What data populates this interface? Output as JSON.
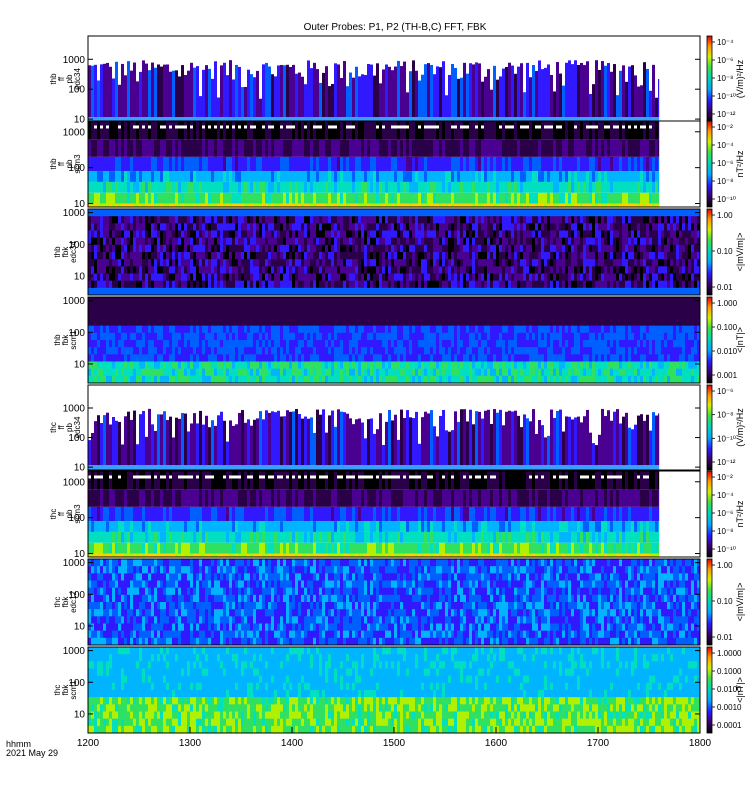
{
  "title": "Outer Probes: P1, P2 (TH-B,C) FFT, FBK",
  "footer": {
    "time_label": "hhmm",
    "date_label": "2021 May 29"
  },
  "colors": {
    "background": "#ffffff",
    "axis": "#000000"
  },
  "chart_data": {
    "type": "heatmap",
    "x_ticks": [
      "1200",
      "1300",
      "1400",
      "1500",
      "1600",
      "1700",
      "1800"
    ],
    "x_range": [
      1200,
      1800
    ],
    "panels": [
      {
        "label_lines": [
          "thb",
          "ff",
          "pb",
          "edc34"
        ],
        "y_ticks": [
          "10",
          "100",
          "1000"
        ],
        "y_scale": "log",
        "y_range": [
          8,
          6000
        ],
        "data_end": 1760,
        "style": "fft_e",
        "colorbar_label": "(V/m)²/Hz",
        "colorbar_ticks": [
          "10⁻⁴",
          "10⁻⁶",
          "10⁻⁸",
          "10⁻¹⁰",
          "10⁻¹²"
        ]
      },
      {
        "label_lines": [
          "thb",
          "ff",
          "pb",
          "scm3"
        ],
        "y_ticks": [
          "10",
          "100",
          "1000"
        ],
        "y_scale": "log",
        "y_range": [
          8,
          2000
        ],
        "data_end": 1760,
        "style": "fft_b",
        "colorbar_label": "nT²/Hz",
        "colorbar_ticks": [
          "10⁻²",
          "10⁻⁴",
          "10⁻⁶",
          "10⁻⁸",
          "10⁻¹⁰"
        ]
      },
      {
        "label_lines": [
          "thb",
          "fbk",
          "edc34"
        ],
        "y_ticks": [
          "10",
          "100",
          "1000"
        ],
        "y_scale": "log",
        "y_range": [
          2.5,
          1300
        ],
        "data_end": 1800,
        "style": "fbk_e",
        "colorbar_label": "<|mV/m|>",
        "colorbar_ticks": [
          "1.00",
          "0.10",
          "0.01"
        ]
      },
      {
        "label_lines": [
          "thb",
          "fbk",
          "scm1"
        ],
        "y_ticks": [
          "10",
          "100",
          "1000"
        ],
        "y_scale": "log",
        "y_range": [
          2.5,
          1300
        ],
        "data_end": 1800,
        "style": "fbk_b",
        "colorbar_label": "<|nT|>",
        "colorbar_ticks": [
          "1.000",
          "0.100",
          "0.010",
          "0.001"
        ]
      },
      {
        "label_lines": [
          "thc",
          "ff",
          "pb",
          "edc34"
        ],
        "y_ticks": [
          "10",
          "100",
          "1000"
        ],
        "y_scale": "log",
        "y_range": [
          8,
          6000
        ],
        "data_end": 1760,
        "style": "fft_e",
        "colorbar_label": "(V/m)²/Hz",
        "colorbar_ticks": [
          "10⁻⁶",
          "10⁻⁸",
          "10⁻¹⁰",
          "10⁻¹²"
        ]
      },
      {
        "label_lines": [
          "thc",
          "ff",
          "pb",
          "scm3"
        ],
        "y_ticks": [
          "10",
          "100",
          "1000"
        ],
        "y_scale": "log",
        "y_range": [
          8,
          2000
        ],
        "data_end": 1760,
        "style": "fft_b",
        "colorbar_label": "nT²/Hz",
        "colorbar_ticks": [
          "10⁻²",
          "10⁻⁴",
          "10⁻⁶",
          "10⁻⁸",
          "10⁻¹⁰"
        ]
      },
      {
        "label_lines": [
          "thc",
          "fbk",
          "edc12"
        ],
        "y_ticks": [
          "10",
          "100",
          "1000"
        ],
        "y_scale": "log",
        "y_range": [
          2.5,
          1300
        ],
        "data_end": 1800,
        "style": "fbk_e2",
        "colorbar_label": "<|mV/m|>",
        "colorbar_ticks": [
          "1.00",
          "0.10",
          "0.01"
        ]
      },
      {
        "label_lines": [
          "thc",
          "fbk",
          "scm1"
        ],
        "y_ticks": [
          "10",
          "100",
          "1000"
        ],
        "y_scale": "log",
        "y_range": [
          2.5,
          1300
        ],
        "data_end": 1800,
        "style": "fbk_b2",
        "colorbar_label": "<|nT|>",
        "colorbar_ticks": [
          "1.0000",
          "0.1000",
          "0.0100",
          "0.0010",
          "0.0001"
        ]
      }
    ]
  }
}
